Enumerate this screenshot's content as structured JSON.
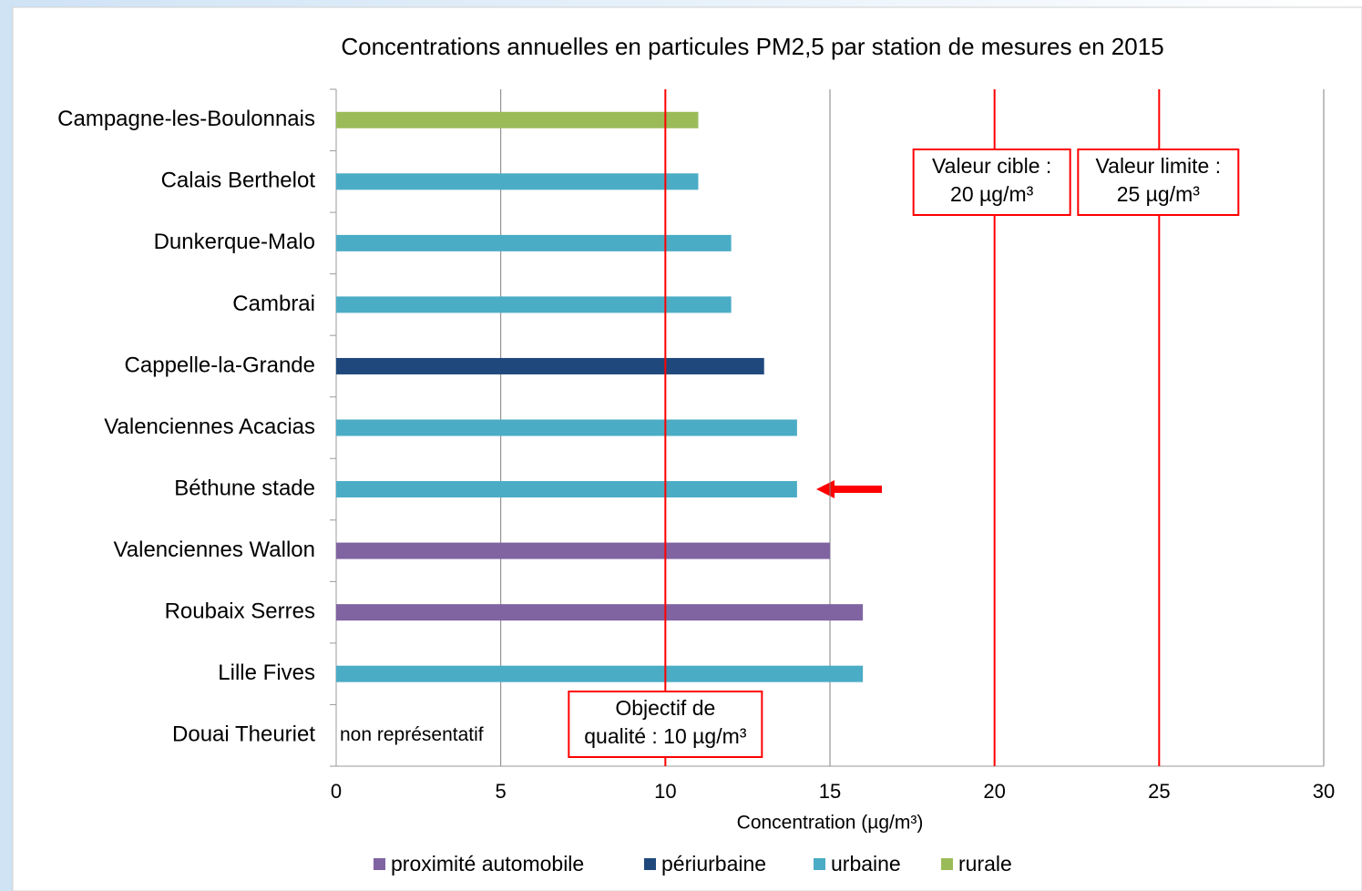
{
  "chart_data": {
    "type": "hbar",
    "title": "Concentrations annuelles en particules PM2,5 par station de mesures en 2015",
    "x_label": "Concentration (µg/m³)",
    "categories": [
      "Campagne-les-Boulonnais",
      "Calais Berthelot",
      "Dunkerque-Malo",
      "Cambrai",
      "Cappelle-la-Grande",
      "Valenciennes Acacias",
      "Béthune stade",
      "Valenciennes Wallon",
      "Roubaix Serres",
      "Lille Fives",
      "Douai Theuriet"
    ],
    "series": [
      {
        "name": "proximité automobile",
        "color": "#8064a2",
        "values": [
          null,
          null,
          null,
          null,
          null,
          null,
          null,
          15,
          16,
          null,
          null
        ]
      },
      {
        "name": "périurbaine",
        "color": "#1f497d",
        "values": [
          null,
          null,
          null,
          null,
          13,
          null,
          null,
          null,
          null,
          null,
          null
        ]
      },
      {
        "name": "urbaine",
        "color": "#4bacc6",
        "values": [
          null,
          11,
          12,
          12,
          null,
          14,
          14,
          null,
          null,
          16,
          null
        ]
      },
      {
        "name": "rurale",
        "color": "#9bbb59",
        "values": [
          11,
          null,
          null,
          null,
          null,
          null,
          null,
          null,
          null,
          null,
          null
        ]
      }
    ],
    "annotations": [
      {
        "category": 10,
        "text": "non représentatif"
      }
    ],
    "reference_lines": [
      {
        "value": 10,
        "label": [
          "Objectif de",
          "qualité : 10 µg/m³"
        ]
      },
      {
        "value": 20,
        "label": [
          "Valeur cible :",
          "20 µg/m³"
        ]
      },
      {
        "value": 25,
        "label": [
          "Valeur limite :",
          "25 µg/m³"
        ]
      }
    ],
    "reference_color": "#ff0000",
    "xlim": [
      0,
      30
    ],
    "xticks": [
      0,
      5,
      10,
      15,
      20,
      25,
      30
    ],
    "grid": true,
    "legend": "bottom"
  }
}
